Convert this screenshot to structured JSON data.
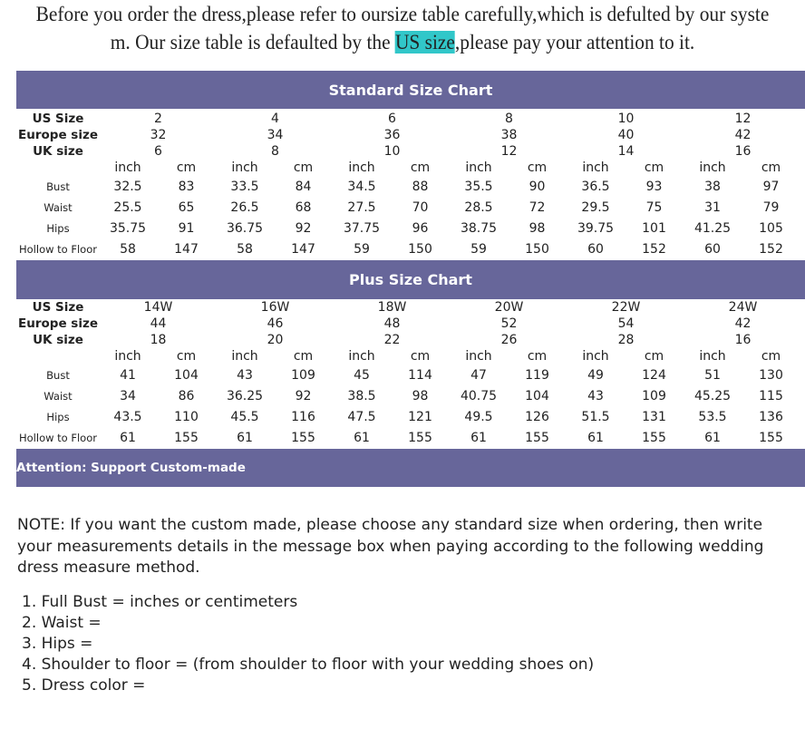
{
  "intro": {
    "line1": "Before you order the dress,please refer to oursize table carefully,which is defulted by our syste",
    "line2_a": "m. Our size table is defaulted by the ",
    "line2_hl": "US size",
    "line2_b": ",please pay your attention to it.",
    "highlight_color": "#31c7c9"
  },
  "banner_color": "#67669a",
  "standard": {
    "title": "Standard Size Chart",
    "labels": [
      "US Size",
      "Europe size",
      "UK size"
    ],
    "us": [
      "2",
      "4",
      "6",
      "8",
      "10",
      "12"
    ],
    "eu": [
      "32",
      "34",
      "36",
      "38",
      "40",
      "42"
    ],
    "uk": [
      "6",
      "8",
      "10",
      "12",
      "14",
      "16"
    ],
    "unit_inch": "inch",
    "unit_cm": "cm",
    "rows": [
      {
        "label": "Bust",
        "values": [
          "32.5",
          "83",
          "33.5",
          "84",
          "34.5",
          "88",
          "35.5",
          "90",
          "36.5",
          "93",
          "38",
          "97"
        ]
      },
      {
        "label": "Waist",
        "values": [
          "25.5",
          "65",
          "26.5",
          "68",
          "27.5",
          "70",
          "28.5",
          "72",
          "29.5",
          "75",
          "31",
          "79"
        ]
      },
      {
        "label": "Hips",
        "values": [
          "35.75",
          "91",
          "36.75",
          "92",
          "37.75",
          "96",
          "38.75",
          "98",
          "39.75",
          "101",
          "41.25",
          "105"
        ]
      },
      {
        "label": "Hollow to Floor",
        "values": [
          "58",
          "147",
          "58",
          "147",
          "59",
          "150",
          "59",
          "150",
          "60",
          "152",
          "60",
          "152"
        ]
      }
    ]
  },
  "plus": {
    "title": "Plus Size Chart",
    "labels": [
      "US Size",
      "Europe size",
      "UK size"
    ],
    "us": [
      "14W",
      "16W",
      "18W",
      "20W",
      "22W",
      "24W"
    ],
    "eu": [
      "44",
      "46",
      "48",
      "52",
      "54",
      "42"
    ],
    "uk": [
      "18",
      "20",
      "22",
      "26",
      "28",
      "16"
    ],
    "unit_inch": "inch",
    "unit_cm": "cm",
    "rows": [
      {
        "label": "Bust",
        "values": [
          "41",
          "104",
          "43",
          "109",
          "45",
          "114",
          "47",
          "119",
          "49",
          "124",
          "51",
          "130"
        ]
      },
      {
        "label": "Waist",
        "values": [
          "34",
          "86",
          "36.25",
          "92",
          "38.5",
          "98",
          "40.75",
          "104",
          "43",
          "109",
          "45.25",
          "115"
        ]
      },
      {
        "label": "Hips",
        "values": [
          "43.5",
          "110",
          "45.5",
          "116",
          "47.5",
          "121",
          "49.5",
          "126",
          "51.5",
          "131",
          "53.5",
          "136"
        ]
      },
      {
        "label": "Hollow to Floor",
        "values": [
          "61",
          "155",
          "61",
          "155",
          "61",
          "155",
          "61",
          "155",
          "61",
          "155",
          "61",
          "155"
        ]
      }
    ]
  },
  "attention": "Attention: Support Custom-made",
  "note": "NOTE: If you want the custom made, please choose any standard size when ordering, then write your measurements details in the message box when paying according to the following wedding dress measure method.",
  "list": [
    "1. Full Bust =   inches or centimeters",
    "2. Waist =",
    "3. Hips =",
    "4. Shoulder to floor =   (from shoulder to floor with your wedding shoes on)",
    "5. Dress color ="
  ]
}
